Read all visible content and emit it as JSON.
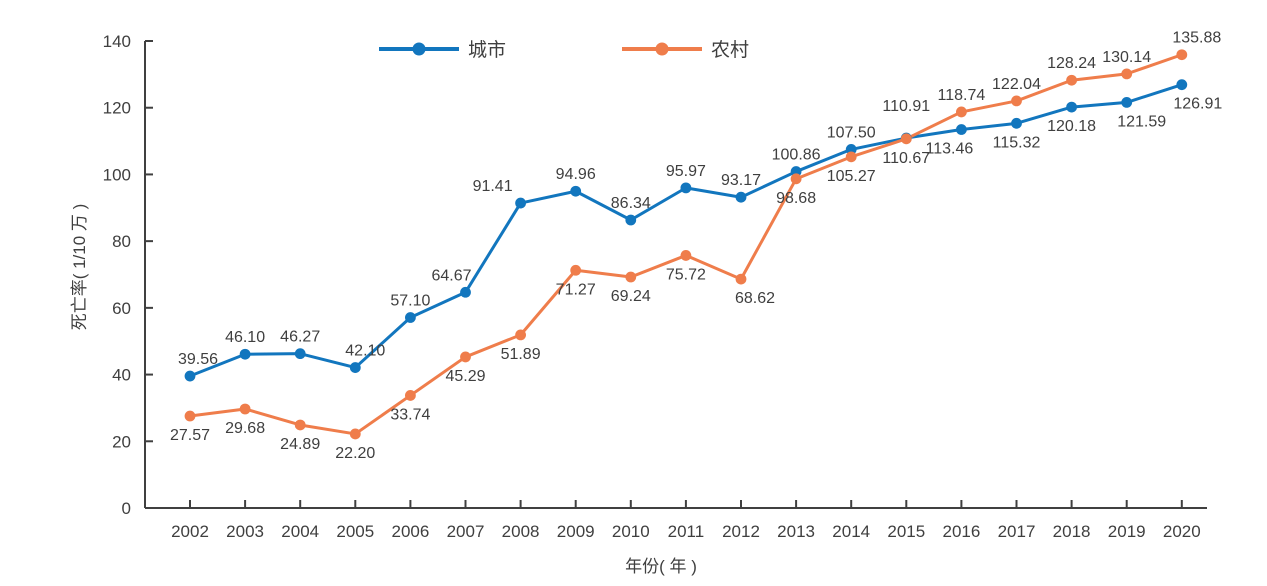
{
  "figure": {
    "background": "#ffffff",
    "axis_color": "#404040",
    "text_color": "#3f3f3f",
    "data_label_color": "#3d3d3d"
  },
  "legend": {
    "position": "top-center",
    "items": [
      {
        "label": "城市",
        "color": "#1276BE",
        "marker": "circle-marker-icon"
      },
      {
        "label": "农村",
        "color": "#EF7D4B",
        "marker": "circle-marker-icon"
      }
    ]
  },
  "chart_data": {
    "type": "line",
    "title": "",
    "xlabel": "年份( 年 )",
    "ylabel": "死亡率( 1/10 万 )",
    "x": [
      "2002",
      "2003",
      "2004",
      "2005",
      "2006",
      "2007",
      "2008",
      "2009",
      "2010",
      "2011",
      "2012",
      "2013",
      "2014",
      "2015",
      "2016",
      "2017",
      "2018",
      "2019",
      "2020"
    ],
    "ylim": [
      0,
      140
    ],
    "yticks": [
      0,
      20,
      40,
      60,
      80,
      100,
      120,
      140
    ],
    "grid": false,
    "data_labels": true,
    "legend_position": "top-center",
    "series": [
      {
        "name": "城市",
        "color": "#1276BE",
        "values": [
          39.56,
          46.1,
          46.27,
          42.1,
          57.1,
          64.67,
          91.41,
          94.96,
          86.34,
          95.97,
          93.17,
          100.86,
          107.5,
          110.91,
          113.46,
          115.32,
          120.18,
          121.59,
          126.91
        ]
      },
      {
        "name": "农村",
        "color": "#EF7D4B",
        "values": [
          27.57,
          29.68,
          24.89,
          22.2,
          33.74,
          45.29,
          51.89,
          71.27,
          69.24,
          75.72,
          68.62,
          98.68,
          105.27,
          110.67,
          118.74,
          122.04,
          128.24,
          130.14,
          135.88
        ]
      }
    ]
  }
}
